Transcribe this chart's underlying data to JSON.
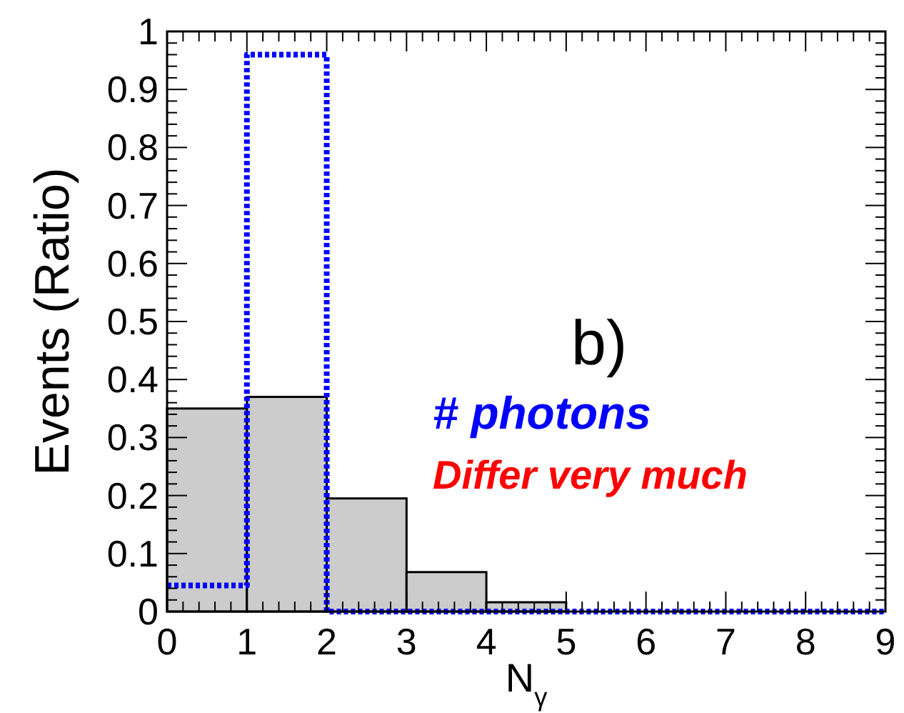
{
  "chart_data": {
    "type": "histogram",
    "xlabel": "N$_{γ}$",
    "ylabel": "Events (Ratio)",
    "bins": [
      0,
      1,
      2,
      3,
      4,
      5,
      6,
      7,
      8,
      9
    ],
    "series": [
      {
        "color": "#cccccc",
        "values": [
          0.35,
          0.37,
          0.195,
          0.068,
          0.016,
          0,
          0,
          0,
          0
        ]
      },
      {
        "type": "step",
        "color": "#0000ff",
        "line_style": "dotted",
        "x": [
          0,
          1,
          2,
          3,
          4,
          5,
          6,
          7,
          8,
          9
        ],
        "values": [
          0.045,
          0.96,
          0,
          0,
          0,
          0,
          0,
          0,
          0,
          0
        ]
      }
    ],
    "xlim": [
      0,
      9
    ],
    "xticks": [
      0,
      1,
      2,
      3,
      4,
      5,
      6,
      7,
      8,
      9
    ],
    "ylim": [
      0,
      1
    ],
    "yticks": [
      0,
      {
        "value": 0.1,
        "label": "0.1"
      },
      {
        "value": 0.2,
        "label": "0.2"
      },
      {
        "value": 0.3,
        "label": "0.3"
      },
      {
        "value": 0.4,
        "label": "0.4"
      },
      {
        "value": 0.5,
        "label": "0.5"
      },
      {
        "value": 0.6,
        "label": "0.6"
      },
      {
        "value": 0.7,
        "label": "0.7"
      },
      {
        "value": 0.8,
        "label": "0.8"
      },
      {
        "value": 0.9,
        "label": "0.9"
      },
      1
    ],
    "annotations": [
      "b)",
      "# photons",
      "Differ very much"
    ]
  }
}
